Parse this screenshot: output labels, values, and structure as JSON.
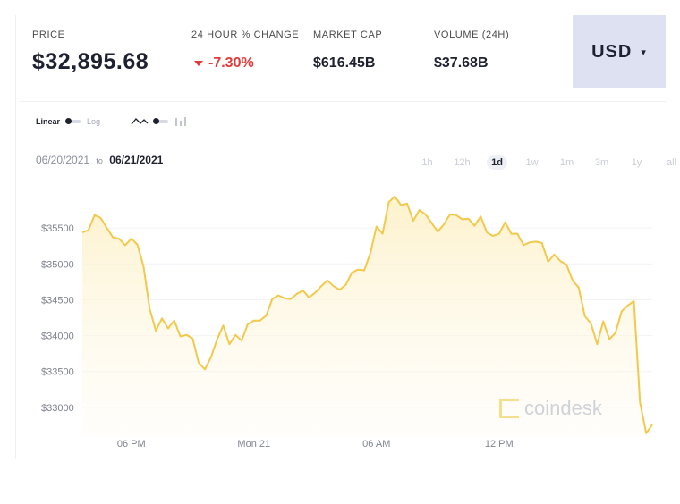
{
  "header": {
    "price_label": "PRICE",
    "price_value": "$32,895.68",
    "change_label": "24 HOUR % CHANGE",
    "change_value": "-7.30%",
    "cap_label": "MARKET CAP",
    "cap_value": "$616.45B",
    "volume_label": "VOLUME (24H)",
    "volume_value": "$37.68B",
    "currency": "USD"
  },
  "controls": {
    "scale_linear": "Linear",
    "scale_log": "Log",
    "date_start": "06/20/2021",
    "date_to": "to",
    "date_end": "06/21/2021",
    "ranges": [
      "1h",
      "12h",
      "1d",
      "1w",
      "1m",
      "3m",
      "1y",
      "all"
    ],
    "active_range": "1d"
  },
  "watermark": "coindesk",
  "colors": {
    "line": "#f2c94c",
    "fill_top": "#fdf1c7",
    "down": "#e23a3a"
  },
  "chart_data": {
    "type": "area",
    "x_ticks": [
      "06 PM",
      "Mon 21",
      "06 AM",
      "12 PM"
    ],
    "x_tick_index": [
      8,
      28,
      48,
      68
    ],
    "y_ticks": [
      "$33000",
      "$33500",
      "$34000",
      "$34500",
      "$35000",
      "$35500"
    ],
    "y_tick_values": [
      33000,
      33500,
      34000,
      34500,
      35000,
      35500
    ],
    "ylim": [
      32600,
      36000
    ],
    "values": [
      35440,
      35470,
      35680,
      35640,
      35500,
      35370,
      35350,
      35260,
      35350,
      35270,
      34960,
      34370,
      34070,
      34240,
      34100,
      34210,
      33990,
      34010,
      33960,
      33620,
      33530,
      33700,
      33950,
      34140,
      33880,
      34010,
      33930,
      34160,
      34210,
      34210,
      34280,
      34510,
      34560,
      34520,
      34510,
      34580,
      34630,
      34530,
      34600,
      34690,
      34770,
      34690,
      34640,
      34710,
      34880,
      34920,
      34910,
      35150,
      35520,
      35420,
      35860,
      35940,
      35820,
      35840,
      35600,
      35750,
      35690,
      35570,
      35450,
      35550,
      35690,
      35680,
      35620,
      35630,
      35530,
      35660,
      35440,
      35390,
      35420,
      35580,
      35420,
      35420,
      35260,
      35300,
      35310,
      35290,
      35030,
      35130,
      35040,
      34990,
      34770,
      34670,
      34270,
      34170,
      33880,
      34200,
      33950,
      34040,
      34340,
      34420,
      34480,
      33070,
      32640,
      32760
    ]
  }
}
